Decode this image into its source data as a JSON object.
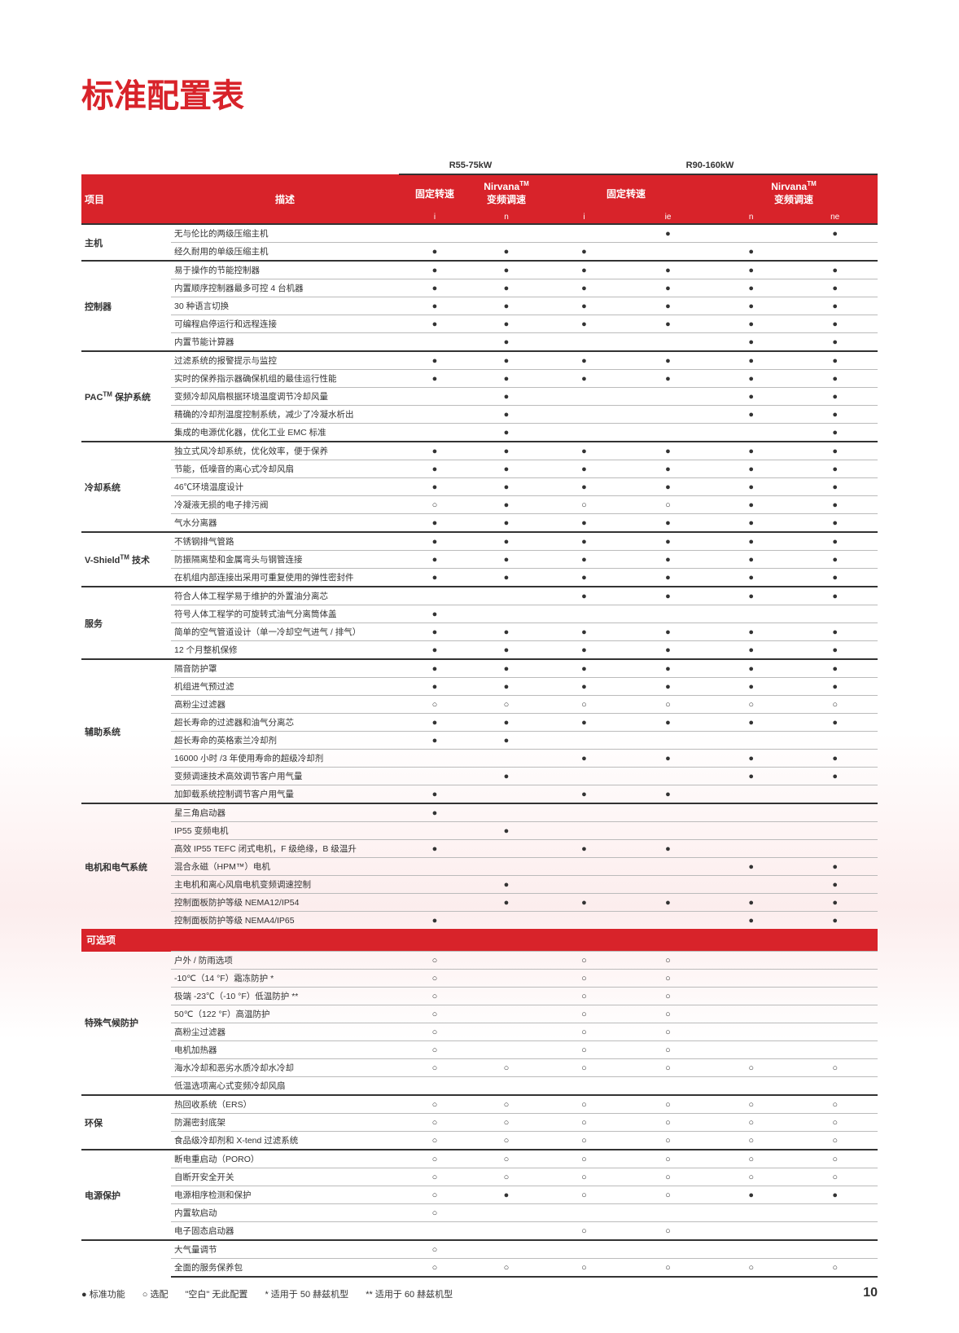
{
  "title": "标准配置表",
  "title_color": "#d8232a",
  "header_bg": "#d8232a",
  "pageNumber": "10",
  "groupHeaders": [
    "R55-75kW",
    "R90-160kW"
  ],
  "colHeaders": {
    "item": "项目",
    "desc": "描述",
    "cols": [
      "固定转速",
      "Nirvana™\n变频调速",
      "固定转速",
      "Nirvana™\n变频调速"
    ]
  },
  "subCols": [
    "i",
    "n",
    "i",
    "ie",
    "n",
    "ne"
  ],
  "optionHeader": "可选项",
  "legend": {
    "std": "● 标准功能",
    "opt": "○ 选配",
    "blank": "\"空白\" 无此配置",
    "note1": "* 适用于 50 赫兹机型",
    "note2": "** 适用于 60 赫兹机型"
  },
  "stdGroups": [
    {
      "cat": "主机",
      "rows": [
        {
          "d": "无与伦比的两级压缩主机",
          "v": [
            "",
            "",
            "",
            "●",
            "",
            "●"
          ]
        },
        {
          "d": "经久耐用的单级压缩主机",
          "v": [
            "●",
            "●",
            "●",
            "",
            "●",
            ""
          ]
        }
      ]
    },
    {
      "cat": "控制器",
      "rows": [
        {
          "d": "易于操作的节能控制器",
          "v": [
            "●",
            "●",
            "●",
            "●",
            "●",
            "●"
          ]
        },
        {
          "d": "内置顺序控制器最多可控 4 台机器",
          "v": [
            "●",
            "●",
            "●",
            "●",
            "●",
            "●"
          ]
        },
        {
          "d": "30 种语言切换",
          "v": [
            "●",
            "●",
            "●",
            "●",
            "●",
            "●"
          ]
        },
        {
          "d": "可编程启停运行和远程连接",
          "v": [
            "●",
            "●",
            "●",
            "●",
            "●",
            "●"
          ]
        },
        {
          "d": "内置节能计算器",
          "v": [
            "",
            "●",
            "",
            "",
            "●",
            "●"
          ]
        }
      ]
    },
    {
      "cat": "PAC™ 保护系统",
      "rows": [
        {
          "d": "过滤系统的报警提示与监控",
          "v": [
            "●",
            "●",
            "●",
            "●",
            "●",
            "●"
          ]
        },
        {
          "d": "实时的保养指示器确保机组的最佳运行性能",
          "v": [
            "●",
            "●",
            "●",
            "●",
            "●",
            "●"
          ]
        },
        {
          "d": "变频冷却风扇根据环境温度调节冷却风量",
          "v": [
            "",
            "●",
            "",
            "",
            "●",
            "●"
          ]
        },
        {
          "d": "精确的冷却剂温度控制系统，减少了冷凝水析出",
          "v": [
            "",
            "●",
            "",
            "",
            "●",
            "●"
          ]
        },
        {
          "d": "集成的电源优化器，优化工业 EMC 标准",
          "v": [
            "",
            "●",
            "",
            "",
            "",
            "●"
          ]
        }
      ]
    },
    {
      "cat": "冷却系统",
      "rows": [
        {
          "d": "独立式风冷却系统，优化效率，便于保养",
          "v": [
            "●",
            "●",
            "●",
            "●",
            "●",
            "●"
          ]
        },
        {
          "d": "节能，低噪音的离心式冷却风扇",
          "v": [
            "●",
            "●",
            "●",
            "●",
            "●",
            "●"
          ]
        },
        {
          "d": "46℃环境温度设计",
          "v": [
            "●",
            "●",
            "●",
            "●",
            "●",
            "●"
          ]
        },
        {
          "d": "冷凝液无损的电子排污阀",
          "v": [
            "○",
            "●",
            "○",
            "○",
            "●",
            "●"
          ]
        },
        {
          "d": "气水分离器",
          "v": [
            "●",
            "●",
            "●",
            "●",
            "●",
            "●"
          ]
        }
      ]
    },
    {
      "cat": "V-Shield™ 技术",
      "rows": [
        {
          "d": "不锈钢排气管路",
          "v": [
            "●",
            "●",
            "●",
            "●",
            "●",
            "●"
          ]
        },
        {
          "d": "防振隔离垫和金属弯头与钢管连接",
          "v": [
            "●",
            "●",
            "●",
            "●",
            "●",
            "●"
          ]
        },
        {
          "d": "在机组内部连接出采用可重复使用的弹性密封件",
          "v": [
            "●",
            "●",
            "●",
            "●",
            "●",
            "●"
          ]
        }
      ]
    },
    {
      "cat": "服务",
      "rows": [
        {
          "d": "符合人体工程学易于维护的外置油分离芯",
          "v": [
            "",
            "",
            "●",
            "●",
            "●",
            "●"
          ]
        },
        {
          "d": "符号人体工程学的可旋转式油气分离筒体盖",
          "v": [
            "●",
            "",
            "",
            "",
            "",
            ""
          ]
        },
        {
          "d": "简单的空气管道设计（单一冷却空气进气 / 排气）",
          "v": [
            "●",
            "●",
            "●",
            "●",
            "●",
            "●"
          ]
        },
        {
          "d": "12 个月整机保修",
          "v": [
            "●",
            "●",
            "●",
            "●",
            "●",
            "●"
          ]
        }
      ]
    },
    {
      "cat": "辅助系统",
      "rows": [
        {
          "d": "隔音防护罩",
          "v": [
            "●",
            "●",
            "●",
            "●",
            "●",
            "●"
          ]
        },
        {
          "d": "机组进气预过滤",
          "v": [
            "●",
            "●",
            "●",
            "●",
            "●",
            "●"
          ]
        },
        {
          "d": "高粉尘过滤器",
          "v": [
            "○",
            "○",
            "○",
            "○",
            "○",
            "○"
          ]
        },
        {
          "d": "超长寿命的过滤器和油气分离芯",
          "v": [
            "●",
            "●",
            "●",
            "●",
            "●",
            "●"
          ]
        },
        {
          "d": "超长寿命的英格索兰冷却剂",
          "v": [
            "●",
            "●",
            "",
            "",
            "",
            ""
          ]
        },
        {
          "d": "16000 小时 /3 年使用寿命的超级冷却剂",
          "v": [
            "",
            "",
            "●",
            "●",
            "●",
            "●"
          ]
        },
        {
          "d": "变频调速技术高效调节客户用气量",
          "v": [
            "",
            "●",
            "",
            "",
            "●",
            "●"
          ]
        },
        {
          "d": "加卸载系统控制调节客户用气量",
          "v": [
            "●",
            "",
            "●",
            "●",
            "",
            ""
          ]
        }
      ]
    },
    {
      "cat": "电机和电气系统",
      "rows": [
        {
          "d": "星三角启动器",
          "v": [
            "●",
            "",
            "",
            "",
            "",
            ""
          ]
        },
        {
          "d": "IP55 变频电机",
          "v": [
            "",
            "●",
            "",
            "",
            "",
            ""
          ]
        },
        {
          "d": "高效 IP55 TEFC 闭式电机，F 级绝缘，B 级温升",
          "v": [
            "●",
            "",
            "●",
            "●",
            "",
            ""
          ]
        },
        {
          "d": "混合永磁（HPM™）电机",
          "v": [
            "",
            "",
            "",
            "",
            "●",
            "●"
          ]
        },
        {
          "d": "主电机和离心风扇电机变频调速控制",
          "v": [
            "",
            "●",
            "",
            "",
            "",
            "●"
          ]
        },
        {
          "d": "控制面板防护等级 NEMA12/IP54",
          "v": [
            "",
            "●",
            "●",
            "●",
            "●",
            "●"
          ]
        },
        {
          "d": "控制面板防护等级 NEMA4/IP65",
          "v": [
            "●",
            "",
            "",
            "",
            "●",
            "●"
          ]
        }
      ]
    }
  ],
  "optGroups": [
    {
      "cat": "特殊气候防护",
      "rows": [
        {
          "d": "户外 / 防雨选项",
          "v": [
            "○",
            "",
            "○",
            "○",
            "",
            ""
          ]
        },
        {
          "d": "-10℃（14 °F）霜冻防护 *",
          "v": [
            "○",
            "",
            "○",
            "○",
            "",
            ""
          ]
        },
        {
          "d": "极端 -23℃（-10 °F）低温防护 **",
          "v": [
            "○",
            "",
            "○",
            "○",
            "",
            ""
          ]
        },
        {
          "d": "50℃（122 °F）高温防护",
          "v": [
            "○",
            "",
            "○",
            "○",
            "",
            ""
          ]
        },
        {
          "d": "高粉尘过滤器",
          "v": [
            "○",
            "",
            "○",
            "○",
            "",
            ""
          ]
        },
        {
          "d": "电机加热器",
          "v": [
            "○",
            "",
            "○",
            "○",
            "",
            ""
          ]
        },
        {
          "d": "海水冷却和恶劣水质冷却水冷却",
          "v": [
            "○",
            "○",
            "○",
            "○",
            "○",
            "○"
          ]
        },
        {
          "d": "低温选项离心式变频冷却风扇",
          "v": [
            "",
            "",
            "",
            "",
            "",
            ""
          ]
        }
      ]
    },
    {
      "cat": "环保",
      "rows": [
        {
          "d": "热回收系统（ERS）",
          "v": [
            "○",
            "○",
            "○",
            "○",
            "○",
            "○"
          ]
        },
        {
          "d": "防漏密封底架",
          "v": [
            "○",
            "○",
            "○",
            "○",
            "○",
            "○"
          ]
        },
        {
          "d": "食品级冷却剂和 X-tend 过滤系统",
          "v": [
            "○",
            "○",
            "○",
            "○",
            "○",
            "○"
          ]
        }
      ]
    },
    {
      "cat": "电源保护",
      "rows": [
        {
          "d": "断电重启动（PORO）",
          "v": [
            "○",
            "○",
            "○",
            "○",
            "○",
            "○"
          ]
        },
        {
          "d": "自断开安全开关",
          "v": [
            "○",
            "○",
            "○",
            "○",
            "○",
            "○"
          ]
        },
        {
          "d": "电源相序检测和保护",
          "v": [
            "○",
            "●",
            "○",
            "○",
            "●",
            "●"
          ]
        },
        {
          "d": "内置软启动",
          "v": [
            "○",
            "",
            "",
            "",
            "",
            ""
          ]
        },
        {
          "d": "电子固态启动器",
          "v": [
            "",
            "",
            "○",
            "○",
            "",
            ""
          ]
        }
      ]
    },
    {
      "cat": "",
      "rows": [
        {
          "d": "大气量调节",
          "v": [
            "○",
            "",
            "",
            "",
            "",
            ""
          ]
        },
        {
          "d": "全面的服务保养包",
          "v": [
            "○",
            "○",
            "○",
            "○",
            "○",
            "○"
          ]
        }
      ]
    }
  ]
}
